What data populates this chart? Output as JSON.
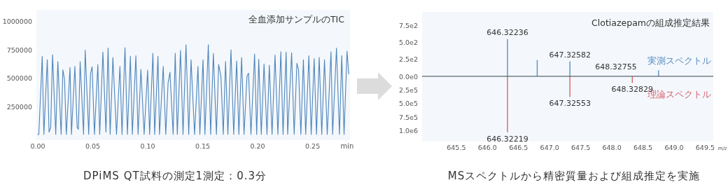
{
  "chart_data": [
    {
      "type": "line",
      "title": "全血添加サンプルのTIC",
      "xlabel": "min",
      "color": "#4f84ba",
      "x": [
        0.0,
        0.0009,
        0.004,
        0.0055,
        0.0086,
        0.0102,
        0.0117,
        0.0134,
        0.0163,
        0.0182,
        0.0212,
        0.0228,
        0.0243,
        0.0259,
        0.0293,
        0.0306,
        0.0337,
        0.0358,
        0.0369,
        0.0385,
        0.0416,
        0.0431,
        0.0463,
        0.0479,
        0.0494,
        0.0515,
        0.0546,
        0.0563,
        0.0592,
        0.062,
        0.0639,
        0.0658,
        0.0683,
        0.0716,
        0.0747,
        0.0766,
        0.0793,
        0.0815,
        0.0842,
        0.086,
        0.0892,
        0.0912,
        0.0938,
        0.0967,
        0.0999,
        0.1017,
        0.1047,
        0.1063,
        0.1093,
        0.1107,
        0.1141,
        0.1164,
        0.1185,
        0.1202,
        0.1231,
        0.125,
        0.1269,
        0.1298,
        0.1321,
        0.1348,
        0.1373,
        0.1394,
        0.1426,
        0.1457,
        0.1474,
        0.1503,
        0.152,
        0.1551,
        0.1572,
        0.1597,
        0.1625,
        0.1645,
        0.1666,
        0.1687,
        0.1708,
        0.1729,
        0.1757,
        0.1782,
        0.1809,
        0.1829,
        0.1854,
        0.1876,
        0.1903,
        0.1917,
        0.1939,
        0.1972,
        0.1991,
        0.201,
        0.2033,
        0.2058,
        0.2085,
        0.2106,
        0.2131,
        0.2158,
        0.2184,
        0.2211,
        0.2231,
        0.2259,
        0.2273,
        0.2309,
        0.2332,
        0.2357,
        0.2372,
        0.2393,
        0.2416,
        0.2437,
        0.2466,
        0.2487,
        0.2514,
        0.2535,
        0.256,
        0.2583,
        0.2608,
        0.2633,
        0.2667,
        0.2682,
        0.2717,
        0.2744,
        0.2765,
        0.2786,
        0.2813,
        0.2828
      ],
      "values": [
        10000,
        10000,
        693000,
        10000,
        663000,
        30000,
        70000,
        707000,
        10000,
        646000,
        10000,
        575000,
        490000,
        10000,
        595000,
        10000,
        605000,
        70000,
        55000,
        646000,
        10000,
        748000,
        10000,
        540000,
        601000,
        10000,
        621000,
        10000,
        730000,
        30000,
        765000,
        10000,
        683000,
        10000,
        605000,
        10000,
        769000,
        10000,
        693000,
        10000,
        699000,
        10000,
        579000,
        10000,
        572000,
        10000,
        720000,
        10000,
        693000,
        10000,
        605000,
        10000,
        460000,
        554000,
        10000,
        720000,
        10000,
        744000,
        10000,
        795000,
        10000,
        663000,
        10000,
        605000,
        10000,
        663000,
        10000,
        795000,
        10000,
        718000,
        10000,
        621000,
        515000,
        10000,
        648000,
        10000,
        750000,
        10000,
        652000,
        10000,
        683000,
        10000,
        520000,
        546000,
        10000,
        714000,
        10000,
        667000,
        10000,
        626000,
        10000,
        615000,
        10000,
        704000,
        10000,
        734000,
        10000,
        730000,
        10000,
        724000,
        10000,
        632000,
        575000,
        10000,
        663000,
        10000,
        698000,
        10000,
        673000,
        10000,
        683000,
        10000,
        663000,
        10000,
        734000,
        10000,
        765000,
        10000,
        698000,
        10000,
        738000,
        540000
      ],
      "xlim": [
        -0.0013,
        0.284
      ],
      "ylim": [
        -40000,
        1100000
      ],
      "xticks": [
        {
          "value": 0,
          "label": "0.00"
        },
        {
          "value": 0.05,
          "label": "0.05"
        },
        {
          "value": 0.1,
          "label": "0.10"
        },
        {
          "value": 0.15,
          "label": "0.15"
        },
        {
          "value": 0.2,
          "label": "0.20"
        },
        {
          "value": 0.25,
          "label": "0.25"
        }
      ],
      "yticks": [
        250000,
        500000,
        750000,
        1000000
      ],
      "annotations": [
        "DPiMS QT試料の測定1測定：0.3分"
      ]
    },
    {
      "type": "bar",
      "title": "Clotiazepamの組成推定結果",
      "tick_labels": "y",
      "series": [
        {
          "name": "実測スペクトル",
          "color": "#5b8dc4",
          "x": [
            646.32236,
            646.8,
            647.32582,
            648.75
          ],
          "values": [
            550,
            240,
            220,
            90
          ]
        }
      ],
      "xlim": [
        644.95,
        649.63
      ],
      "ylim": [
        0,
        950
      ],
      "yticks": [
        {
          "value": 0,
          "label": "0.0e0"
        },
        {
          "value": 250,
          "label": "2.5e2"
        },
        {
          "value": 500,
          "label": "5.0e2"
        },
        {
          "value": 750,
          "label": "7.5e2"
        }
      ],
      "annotations": [
        "MSスペクトルから精密質量および組成推定を実施",
        {
          "text": "646.32236",
          "x": 646.32236,
          "y": 550
        },
        {
          "text": "647.32582",
          "x": 647.32582,
          "y": 220
        },
        "648.32755"
      ]
    },
    {
      "type": "bar",
      "xlabel": "m/z",
      "series": [
        {
          "name": "理論スペクトル",
          "color": "#d9626f",
          "x": [
            646.32219,
            647.32553,
            648.32829
          ],
          "values": [
            1030000,
            380000,
            120000
          ]
        }
      ],
      "xlim": [
        644.95,
        649.63
      ],
      "ylim": [
        1200000,
        0
      ],
      "xticks": [
        645.5,
        {
          "value": 646,
          "label": "646.0"
        },
        646.5,
        {
          "value": 647,
          "label": "647.0"
        },
        647.5,
        {
          "value": 648,
          "label": "648.0"
        },
        648.5,
        {
          "value": 649,
          "label": "649.0"
        },
        649.5
      ],
      "yticks": [
        {
          "value": 250000,
          "label": "2.5e5"
        },
        {
          "value": 500000,
          "label": "5.0e5"
        },
        {
          "value": 750000,
          "label": "7.5e5"
        },
        {
          "value": 1000000,
          "label": "1.0e6"
        }
      ],
      "annotations": [
        {
          "text": "646.32219",
          "x": 646.32219,
          "y": 1030000
        },
        {
          "text": "647.32553",
          "x": 647.32553,
          "y": 380000
        },
        {
          "text": "648.32829",
          "x": 648.32829,
          "y": 120000
        }
      ]
    }
  ]
}
